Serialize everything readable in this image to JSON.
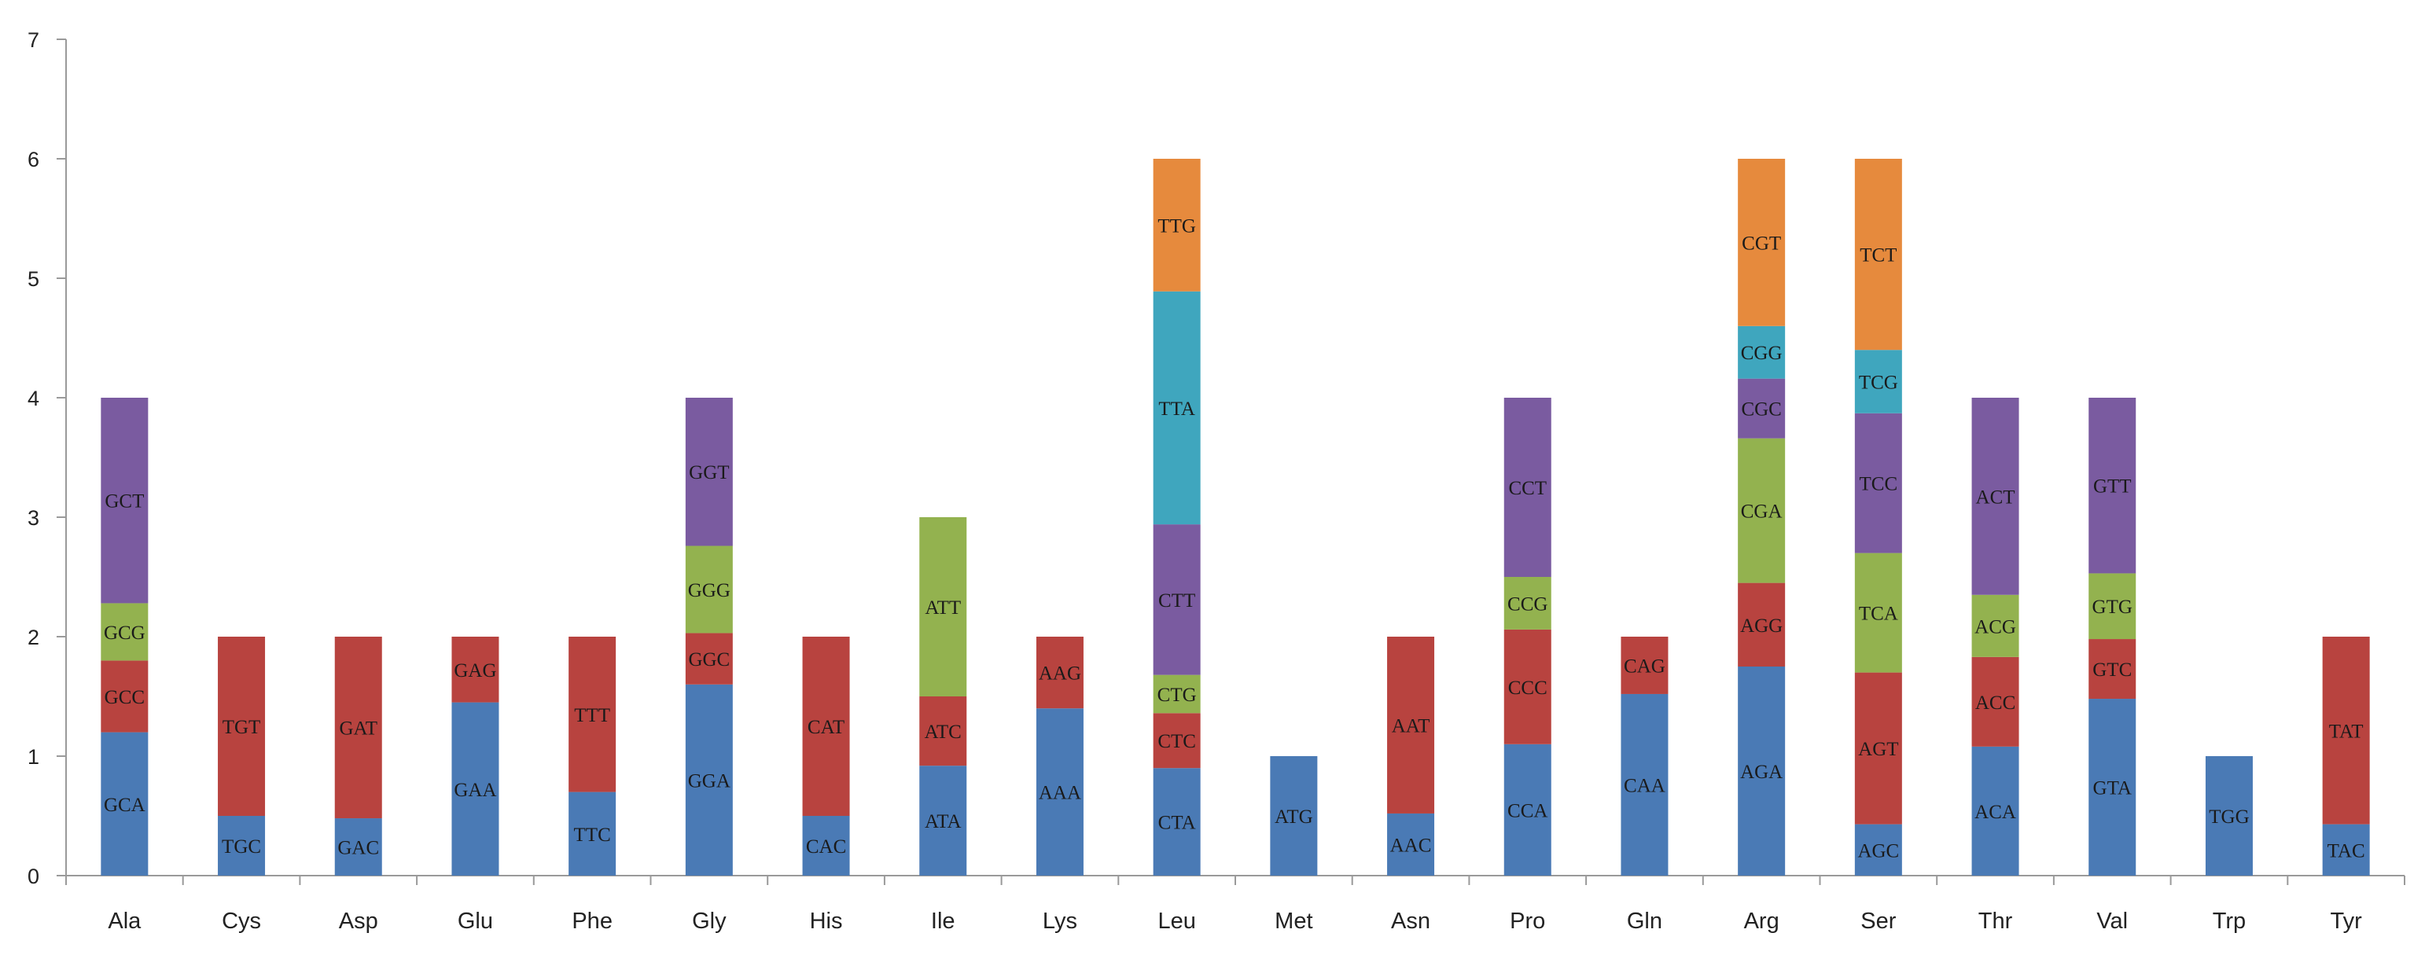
{
  "chart_data": {
    "type": "bar",
    "stacked": true,
    "title": "",
    "xlabel": "",
    "ylabel": "",
    "ylim": [
      0,
      7
    ],
    "yticks": [
      0,
      1,
      2,
      3,
      4,
      5,
      6,
      7
    ],
    "grid": false,
    "legend": "none",
    "colors": [
      "#4a7ab5",
      "#b8433f",
      "#93b24f",
      "#7a5ba0",
      "#3fa6be",
      "#e68a3d"
    ],
    "categories": [
      "Ala",
      "Cys",
      "Asp",
      "Glu",
      "Phe",
      "Gly",
      "His",
      "Ile",
      "Lys",
      "Leu",
      "Met",
      "Asn",
      "Pro",
      "Gln",
      "Arg",
      "Ser",
      "Thr",
      "Val",
      "Trp",
      "Tyr"
    ],
    "stacks": [
      [
        {
          "codon": "GCA",
          "value": 1.2
        },
        {
          "codon": "GCC",
          "value": 0.6
        },
        {
          "codon": "GCG",
          "value": 0.48
        },
        {
          "codon": "GCT",
          "value": 1.72
        }
      ],
      [
        {
          "codon": "TGC",
          "value": 0.5
        },
        {
          "codon": "TGT",
          "value": 1.5
        }
      ],
      [
        {
          "codon": "GAC",
          "value": 0.48
        },
        {
          "codon": "GAT",
          "value": 1.52
        }
      ],
      [
        {
          "codon": "GAA",
          "value": 1.45
        },
        {
          "codon": "GAG",
          "value": 0.55
        }
      ],
      [
        {
          "codon": "TTC",
          "value": 0.7
        },
        {
          "codon": "TTT",
          "value": 1.3
        }
      ],
      [
        {
          "codon": "GGA",
          "value": 1.6
        },
        {
          "codon": "GGC",
          "value": 0.43
        },
        {
          "codon": "GGG",
          "value": 0.73
        },
        {
          "codon": "GGT",
          "value": 1.24
        }
      ],
      [
        {
          "codon": "CAC",
          "value": 0.5
        },
        {
          "codon": "CAT",
          "value": 1.5
        }
      ],
      [
        {
          "codon": "ATA",
          "value": 0.92
        },
        {
          "codon": "ATC",
          "value": 0.58
        },
        {
          "codon": "ATT",
          "value": 1.5
        }
      ],
      [
        {
          "codon": "AAA",
          "value": 1.4
        },
        {
          "codon": "AAG",
          "value": 0.6
        }
      ],
      [
        {
          "codon": "CTA",
          "value": 0.9
        },
        {
          "codon": "CTC",
          "value": 0.46
        },
        {
          "codon": "CTG",
          "value": 0.32
        },
        {
          "codon": "CTT",
          "value": 1.26
        },
        {
          "codon": "TTA",
          "value": 1.95
        },
        {
          "codon": "TTG",
          "value": 1.11
        }
      ],
      [
        {
          "codon": "ATG",
          "value": 1.0
        }
      ],
      [
        {
          "codon": "AAC",
          "value": 0.52
        },
        {
          "codon": "AAT",
          "value": 1.48
        }
      ],
      [
        {
          "codon": "CCA",
          "value": 1.1
        },
        {
          "codon": "CCC",
          "value": 0.96
        },
        {
          "codon": "CCG",
          "value": 0.44
        },
        {
          "codon": "CCT",
          "value": 1.5
        }
      ],
      [
        {
          "codon": "CAA",
          "value": 1.52
        },
        {
          "codon": "CAG",
          "value": 0.48
        }
      ],
      [
        {
          "codon": "AGA",
          "value": 1.75
        },
        {
          "codon": "AGG",
          "value": 0.7
        },
        {
          "codon": "CGA",
          "value": 1.21
        },
        {
          "codon": "CGC",
          "value": 0.5
        },
        {
          "codon": "CGG",
          "value": 0.44
        },
        {
          "codon": "CGT",
          "value": 1.4
        }
      ],
      [
        {
          "codon": "AGC",
          "value": 0.43
        },
        {
          "codon": "AGT",
          "value": 1.27
        },
        {
          "codon": "TCA",
          "value": 1.0
        },
        {
          "codon": "TCC",
          "value": 1.17
        },
        {
          "codon": "TCG",
          "value": 0.53
        },
        {
          "codon": "TCT",
          "value": 1.6
        }
      ],
      [
        {
          "codon": "ACA",
          "value": 1.08
        },
        {
          "codon": "ACC",
          "value": 0.75
        },
        {
          "codon": "ACG",
          "value": 0.52
        },
        {
          "codon": "ACT",
          "value": 1.65
        }
      ],
      [
        {
          "codon": "GTA",
          "value": 1.48
        },
        {
          "codon": "GTC",
          "value": 0.5
        },
        {
          "codon": "GTG",
          "value": 0.55
        },
        {
          "codon": "GTT",
          "value": 1.47
        }
      ],
      [
        {
          "codon": "TGG",
          "value": 1.0
        }
      ],
      [
        {
          "codon": "TAC",
          "value": 0.43
        },
        {
          "codon": "TAT",
          "value": 1.57
        }
      ]
    ],
    "colorIndex": [
      [
        0,
        1,
        2,
        3
      ],
      [
        0,
        1
      ],
      [
        0,
        1
      ],
      [
        0,
        1
      ],
      [
        0,
        1
      ],
      [
        0,
        1,
        2,
        3
      ],
      [
        0,
        1
      ],
      [
        0,
        1,
        2
      ],
      [
        0,
        1
      ],
      [
        0,
        1,
        2,
        3,
        4,
        5
      ],
      [
        0
      ],
      [
        0,
        1
      ],
      [
        0,
        1,
        2,
        3
      ],
      [
        0,
        1
      ],
      [
        0,
        1,
        2,
        3,
        4,
        5
      ],
      [
        0,
        1,
        2,
        3,
        4,
        5
      ],
      [
        0,
        1,
        2,
        3
      ],
      [
        0,
        1,
        2,
        3
      ],
      [
        0
      ],
      [
        0,
        1
      ]
    ]
  }
}
